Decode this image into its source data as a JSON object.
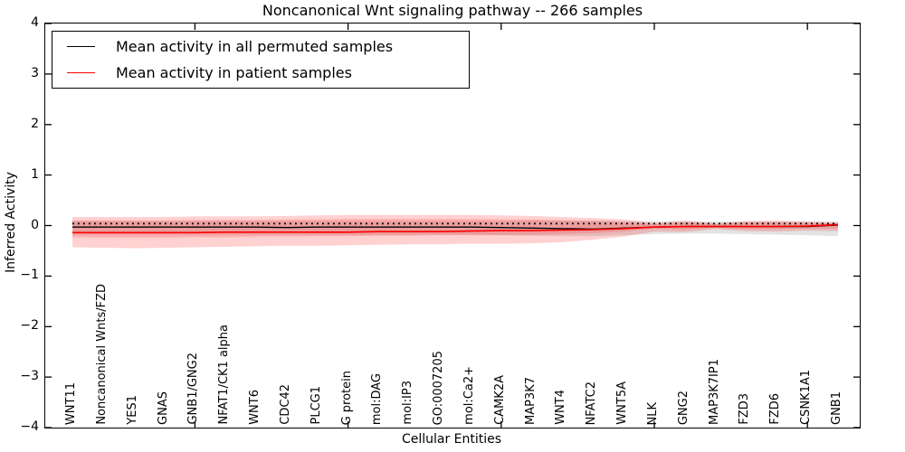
{
  "figure": {
    "title": "Noncanonical Wnt signaling pathway -- 266 samples",
    "xlabel": "Cellular Entities",
    "ylabel": "Inferred Activity"
  },
  "legend": {
    "position": "upper left",
    "items": [
      {
        "name": "permuted-mean",
        "label": "Mean activity in all permuted samples",
        "color": "#000000"
      },
      {
        "name": "patient-mean",
        "label": "Mean activity in patient samples",
        "color": "#ff0000"
      }
    ]
  },
  "chart_data": {
    "type": "line",
    "title": "Noncanonical Wnt signaling pathway -- 266 samples",
    "xlabel": "Cellular Entities",
    "ylabel": "Inferred Activity",
    "ylim": [
      -4,
      4
    ],
    "yticks": [
      -4,
      -3,
      -2,
      -1,
      0,
      1,
      2,
      3,
      4
    ],
    "grid": false,
    "legend_position": "upper left",
    "categories": [
      "WNT11",
      "Noncanonical Wnts/FZD",
      "YES1",
      "GNAS",
      "GNB1/GNG2",
      "NFAT1/CK1 alpha",
      "WNT6",
      "CDC42",
      "PLCG1",
      "G protein",
      "mol:DAG",
      "mol:IP3",
      "GO:0007205",
      "mol:Ca2+",
      "CAMK2A",
      "MAP3K7",
      "WNT4",
      "NFATC2",
      "WNT5A",
      "NLK",
      "GNG2",
      "MAP3K7IP1",
      "FZD3",
      "FZD6",
      "CSNK1A1",
      "GNB1"
    ],
    "top_tick_indices": [
      4,
      9,
      14,
      19,
      24
    ],
    "series": [
      {
        "name": "Mean activity in all permuted samples",
        "color": "#000000",
        "style": "solid",
        "width": 1.4,
        "values": [
          -0.03,
          -0.03,
          -0.03,
          -0.03,
          -0.03,
          -0.03,
          -0.03,
          -0.04,
          -0.03,
          -0.03,
          -0.03,
          -0.03,
          -0.03,
          -0.03,
          -0.04,
          -0.05,
          -0.06,
          -0.07,
          -0.05,
          -0.03,
          -0.02,
          -0.02,
          -0.02,
          -0.02,
          -0.02,
          0.01
        ]
      },
      {
        "name": "Mean activity in patient samples",
        "color": "#ff0000",
        "style": "solid",
        "width": 1.6,
        "values": [
          -0.14,
          -0.14,
          -0.14,
          -0.14,
          -0.14,
          -0.13,
          -0.13,
          -0.13,
          -0.13,
          -0.13,
          -0.12,
          -0.12,
          -0.12,
          -0.11,
          -0.1,
          -0.1,
          -0.09,
          -0.08,
          -0.06,
          -0.03,
          -0.02,
          -0.02,
          -0.02,
          -0.02,
          -0.01,
          0.02
        ]
      },
      {
        "name": "permuted zero reference (dotted)",
        "color": "#000000",
        "style": "dotted",
        "width": 1.8,
        "values": [
          0.04,
          0.04,
          0.04,
          0.04,
          0.04,
          0.04,
          0.04,
          0.04,
          0.04,
          0.04,
          0.04,
          0.04,
          0.04,
          0.04,
          0.04,
          0.04,
          0.04,
          0.04,
          0.04,
          0.04,
          0.04,
          0.04,
          0.04,
          0.04,
          0.04,
          0.04
        ]
      }
    ],
    "bands": [
      {
        "name": "permuted-sample-range",
        "color": "#000000",
        "opacity": 0.11,
        "upper": [
          0.09,
          0.09,
          0.09,
          0.09,
          0.09,
          0.09,
          0.09,
          0.09,
          0.09,
          0.09,
          0.09,
          0.09,
          0.09,
          0.09,
          0.09,
          0.1,
          0.1,
          0.1,
          0.09,
          0.09,
          0.08,
          0.08,
          0.08,
          0.08,
          0.08,
          0.07
        ],
        "lower": [
          -0.18,
          -0.18,
          -0.18,
          -0.18,
          -0.18,
          -0.18,
          -0.18,
          -0.18,
          -0.18,
          -0.18,
          -0.18,
          -0.18,
          -0.18,
          -0.18,
          -0.19,
          -0.2,
          -0.21,
          -0.21,
          -0.19,
          -0.17,
          -0.16,
          -0.16,
          -0.17,
          -0.18,
          -0.19,
          -0.21
        ]
      },
      {
        "name": "patient-sample-range-outer",
        "color": "#ff0000",
        "opacity": 0.18,
        "upper": [
          0.17,
          0.17,
          0.17,
          0.17,
          0.18,
          0.18,
          0.18,
          0.19,
          0.2,
          0.21,
          0.21,
          0.21,
          0.21,
          0.21,
          0.2,
          0.19,
          0.17,
          0.15,
          0.12,
          0.05,
          0.1,
          0.04,
          0.09,
          0.1,
          0.08,
          0.07
        ],
        "lower": [
          -0.43,
          -0.44,
          -0.45,
          -0.44,
          -0.43,
          -0.42,
          -0.41,
          -0.4,
          -0.4,
          -0.39,
          -0.38,
          -0.37,
          -0.37,
          -0.36,
          -0.36,
          -0.35,
          -0.33,
          -0.28,
          -0.22,
          -0.12,
          -0.13,
          -0.07,
          -0.11,
          -0.12,
          -0.1,
          -0.11
        ]
      },
      {
        "name": "patient-sample-range-inner",
        "color": "#ff0000",
        "opacity": 0.16,
        "upper": [
          0.1,
          0.1,
          0.1,
          0.1,
          0.11,
          0.11,
          0.11,
          0.12,
          0.12,
          0.13,
          0.13,
          0.13,
          0.13,
          0.13,
          0.12,
          0.12,
          0.1,
          0.09,
          0.07,
          0.03,
          0.06,
          0.03,
          0.06,
          0.06,
          0.05,
          0.04
        ],
        "lower": [
          -0.23,
          -0.24,
          -0.24,
          -0.24,
          -0.23,
          -0.23,
          -0.22,
          -0.22,
          -0.21,
          -0.21,
          -0.2,
          -0.2,
          -0.19,
          -0.19,
          -0.19,
          -0.18,
          -0.17,
          -0.15,
          -0.12,
          -0.06,
          -0.08,
          -0.04,
          -0.07,
          -0.07,
          -0.06,
          -0.06
        ]
      }
    ]
  }
}
